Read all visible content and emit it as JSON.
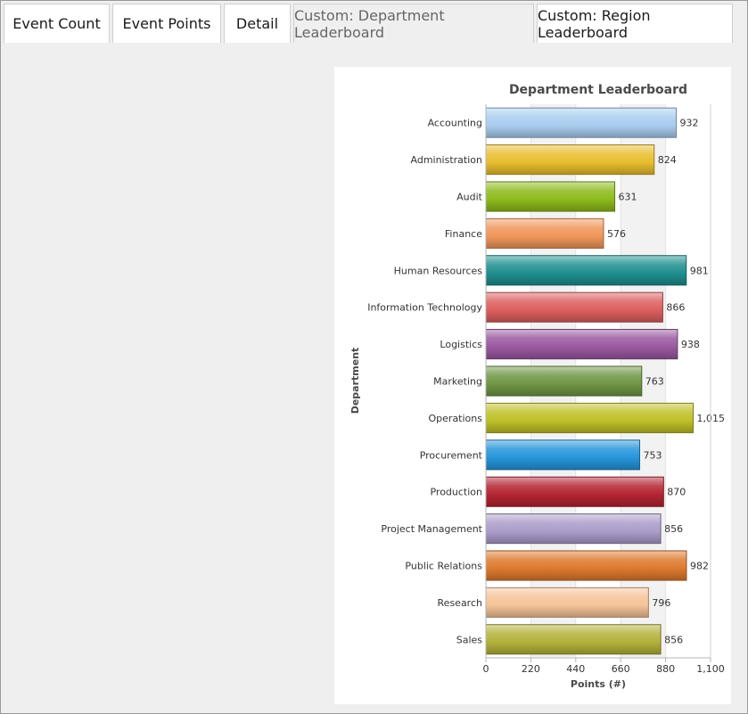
{
  "tabs": [
    {
      "label": "Event Count",
      "active": false
    },
    {
      "label": "Event Points",
      "active": false
    },
    {
      "label": "Detail",
      "active": false
    },
    {
      "label": "Custom: Department Leaderboard",
      "active": true
    },
    {
      "label": "Custom: Region Leaderboard",
      "active": false
    }
  ],
  "chart_data": {
    "type": "bar",
    "orientation": "horizontal",
    "title": "Department Leaderboard",
    "xlabel": "Points (#)",
    "ylabel": "Department",
    "xlim": [
      0,
      1100
    ],
    "xticks": [
      "0",
      "220",
      "440",
      "660",
      "880",
      "1,100"
    ],
    "grid": "alternating vertical bands",
    "categories": [
      "Accounting",
      "Administration",
      "Audit",
      "Finance",
      "Human Resources",
      "Information Technology",
      "Logistics",
      "Marketing",
      "Operations",
      "Procurement",
      "Production",
      "Project Management",
      "Public Relations",
      "Research",
      "Sales"
    ],
    "values": [
      932,
      824,
      631,
      576,
      981,
      866,
      938,
      763,
      1015,
      753,
      870,
      856,
      982,
      796,
      856
    ],
    "value_labels": [
      "932",
      "824",
      "631",
      "576",
      "981",
      "866",
      "938",
      "763",
      "1,015",
      "753",
      "870",
      "856",
      "982",
      "796",
      "856"
    ],
    "colors": [
      "#a9cdef",
      "#e8bd2e",
      "#8dbb1c",
      "#f0965a",
      "#1f8f8f",
      "#dd5f5f",
      "#9a58a0",
      "#6f9645",
      "#bfbf28",
      "#2595db",
      "#b42432",
      "#ab9cca",
      "#dd7a2e",
      "#f5c398",
      "#b3b13a"
    ]
  }
}
